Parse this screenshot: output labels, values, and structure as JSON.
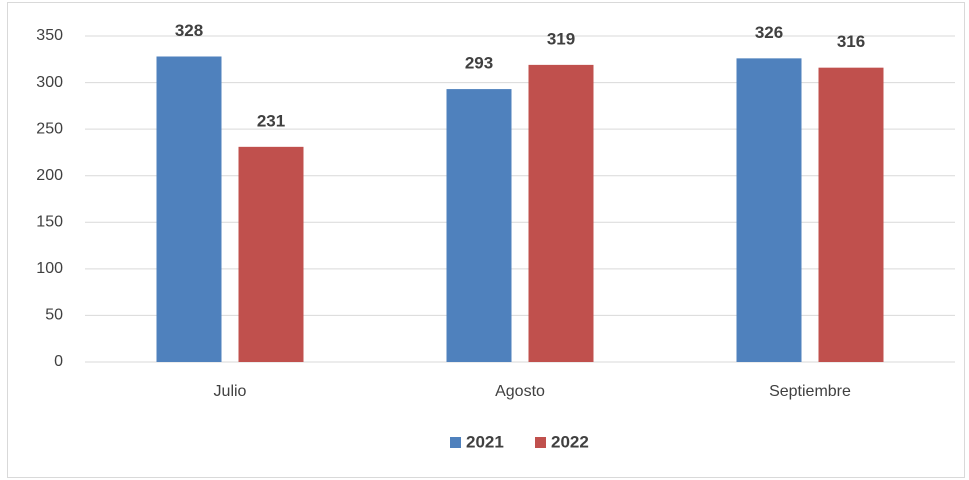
{
  "chart_data": {
    "type": "bar",
    "categories": [
      "Julio",
      "Agosto",
      "Septiembre"
    ],
    "series": [
      {
        "name": "2021",
        "color": "#4f81bd",
        "values": [
          328,
          293,
          326
        ]
      },
      {
        "name": "2022",
        "color": "#c0504d",
        "values": [
          231,
          319,
          316
        ]
      }
    ],
    "ylim": [
      0,
      350
    ],
    "yticks": [
      0,
      50,
      100,
      150,
      200,
      250,
      300,
      350
    ],
    "grid": true,
    "legend": "bottom"
  }
}
